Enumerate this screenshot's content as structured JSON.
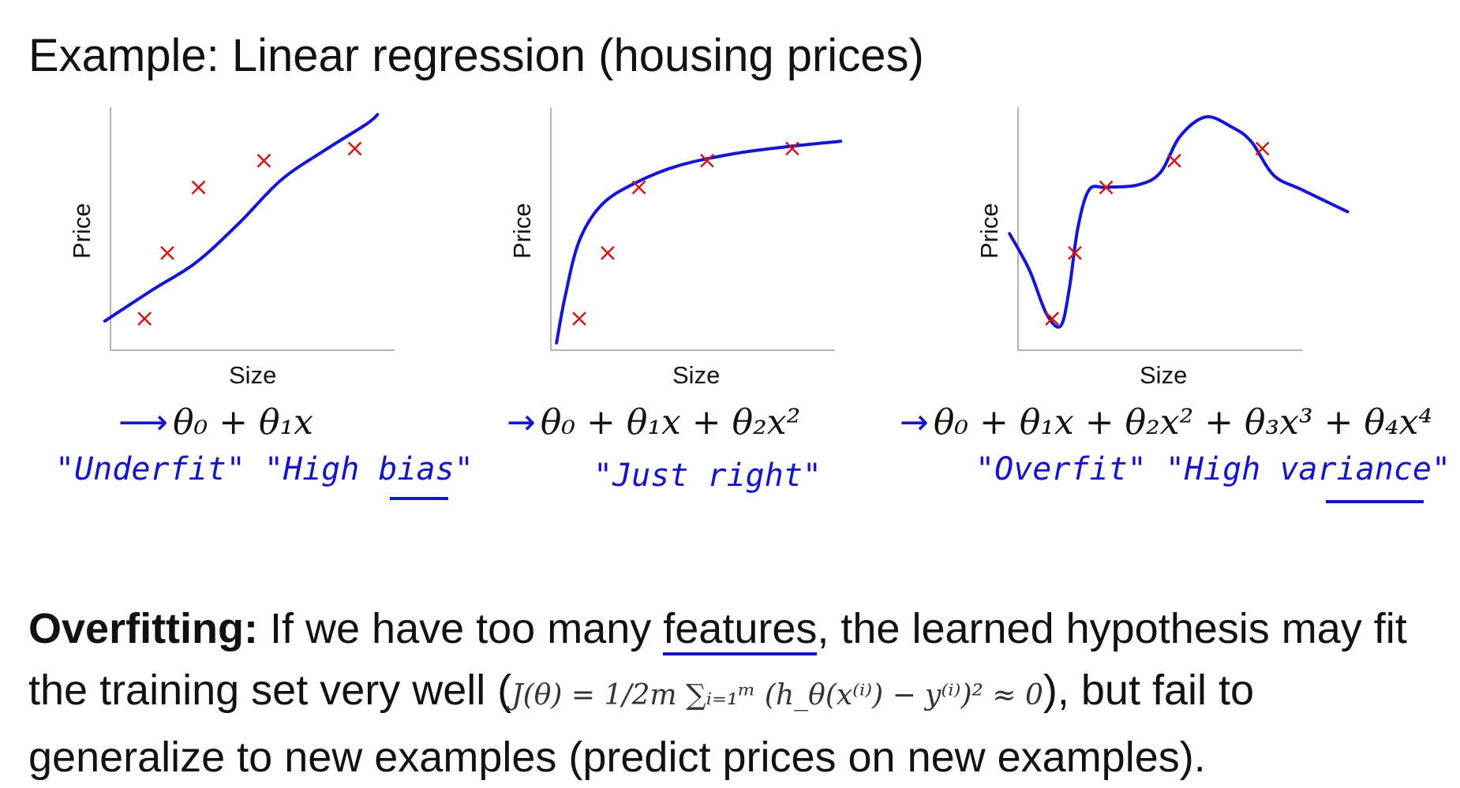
{
  "title": "Example: Linear regression (housing prices)",
  "colors": {
    "data_marker": "#d21414",
    "fit_curve": "#1414d2",
    "axis": "#9a9a9a",
    "annotation": "#1414c8"
  },
  "chart_data": [
    {
      "type": "scatter",
      "xlabel": "Size",
      "ylabel": "Price",
      "points": [
        [
          0.12,
          0.13
        ],
        [
          0.2,
          0.4
        ],
        [
          0.31,
          0.67
        ],
        [
          0.54,
          0.78
        ],
        [
          0.86,
          0.83
        ]
      ],
      "curve": [
        [
          -0.02,
          0.12
        ],
        [
          0.15,
          0.25
        ],
        [
          0.3,
          0.36
        ],
        [
          0.45,
          0.52
        ],
        [
          0.6,
          0.7
        ],
        [
          0.75,
          0.82
        ],
        [
          0.9,
          0.93
        ],
        [
          0.94,
          0.97
        ]
      ],
      "hypothesis": "θ₀ + θ₁x",
      "note": "\"Underfit\"  \"High bias\""
    },
    {
      "type": "scatter",
      "xlabel": "Size",
      "ylabel": "Price",
      "points": [
        [
          0.1,
          0.13
        ],
        [
          0.2,
          0.4
        ],
        [
          0.31,
          0.67
        ],
        [
          0.55,
          0.78
        ],
        [
          0.85,
          0.83
        ]
      ],
      "curve": [
        [
          0.02,
          0.03
        ],
        [
          0.05,
          0.22
        ],
        [
          0.1,
          0.45
        ],
        [
          0.18,
          0.6
        ],
        [
          0.3,
          0.69
        ],
        [
          0.45,
          0.76
        ],
        [
          0.65,
          0.81
        ],
        [
          0.85,
          0.84
        ],
        [
          1.02,
          0.86
        ]
      ],
      "hypothesis": "θ₀ + θ₁x + θ₂x²",
      "note": "\"Just right\""
    },
    {
      "type": "scatter",
      "xlabel": "Size",
      "ylabel": "Price",
      "points": [
        [
          0.12,
          0.13
        ],
        [
          0.2,
          0.4
        ],
        [
          0.31,
          0.67
        ],
        [
          0.55,
          0.78
        ],
        [
          0.86,
          0.83
        ]
      ],
      "curve": [
        [
          -0.03,
          0.48
        ],
        [
          0.04,
          0.33
        ],
        [
          0.1,
          0.15
        ],
        [
          0.15,
          0.1
        ],
        [
          0.18,
          0.25
        ],
        [
          0.21,
          0.5
        ],
        [
          0.25,
          0.66
        ],
        [
          0.31,
          0.67
        ],
        [
          0.42,
          0.68
        ],
        [
          0.5,
          0.73
        ],
        [
          0.57,
          0.88
        ],
        [
          0.66,
          0.96
        ],
        [
          0.75,
          0.92
        ],
        [
          0.82,
          0.86
        ],
        [
          0.9,
          0.72
        ],
        [
          1.0,
          0.66
        ],
        [
          1.16,
          0.57
        ]
      ],
      "hypothesis": "θ₀ + θ₁x + θ₂x² + θ₃x³ + θ₄x⁴",
      "note": "\"Overfit\"  \"High variance\""
    }
  ],
  "overfitting": {
    "label": "Overfitting:",
    "text1": " If we have too many ",
    "features": "features",
    "text2": ", the learned hypothesis may fit the training set very well (",
    "equation": "J(θ) = 1/2m ∑ᵢ₌₁ᵐ (h_θ(x⁽ⁱ⁾) − y⁽ⁱ⁾)² ≈ 0",
    "text3": "), but fail to generalize to new examples (predict prices on new examples)."
  }
}
